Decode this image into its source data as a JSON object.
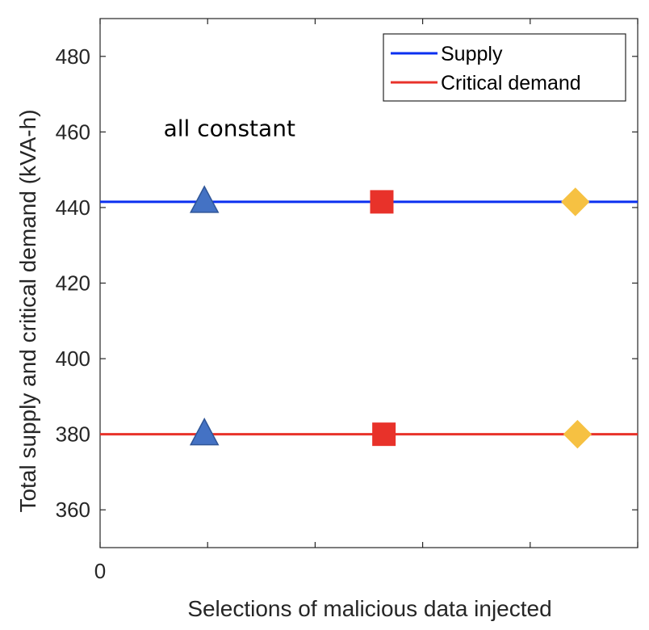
{
  "chart_data": {
    "type": "line",
    "title": "",
    "xlabel": "Selections of malicious data injected",
    "ylabel": "Total supply and critical demand (kVA-h)",
    "xlim": [
      0,
      5
    ],
    "ylim": [
      350,
      490
    ],
    "x_tick_values": [
      0,
      1,
      2,
      3,
      4,
      5
    ],
    "x_tick_labels": [
      "0",
      "",
      "",
      "",
      "",
      ""
    ],
    "y_tick_values": [
      360,
      380,
      400,
      420,
      440,
      460,
      480
    ],
    "y_tick_labels": [
      "360",
      "380",
      "400",
      "420",
      "440",
      "460",
      "480"
    ],
    "grid": false,
    "legend_position": "top-right",
    "series": [
      {
        "name": "Supply",
        "color": "#0a2ff0",
        "value": 441.5
      },
      {
        "name": "Critical demand",
        "color": "#e8322a",
        "value": 380
      }
    ],
    "markers": [
      {
        "shape": "triangle",
        "color": "#4472c4",
        "stroke": "#2f5597",
        "x": 0.97,
        "y": 441.5
      },
      {
        "shape": "square",
        "color": "#e8322a",
        "stroke": "#e8322a",
        "x": 2.62,
        "y": 441.5
      },
      {
        "shape": "diamond",
        "color": "#f6c142",
        "stroke": "#f6c142",
        "x": 4.42,
        "y": 441.5
      },
      {
        "shape": "triangle",
        "color": "#4472c4",
        "stroke": "#2f5597",
        "x": 0.97,
        "y": 380
      },
      {
        "shape": "square",
        "color": "#e8322a",
        "stroke": "#e8322a",
        "x": 2.64,
        "y": 380
      },
      {
        "shape": "diamond",
        "color": "#f6c142",
        "stroke": "#f6c142",
        "x": 4.44,
        "y": 380
      }
    ],
    "annotations": [
      {
        "text": "all constant",
        "x": 0.62,
        "y": 463
      }
    ]
  }
}
